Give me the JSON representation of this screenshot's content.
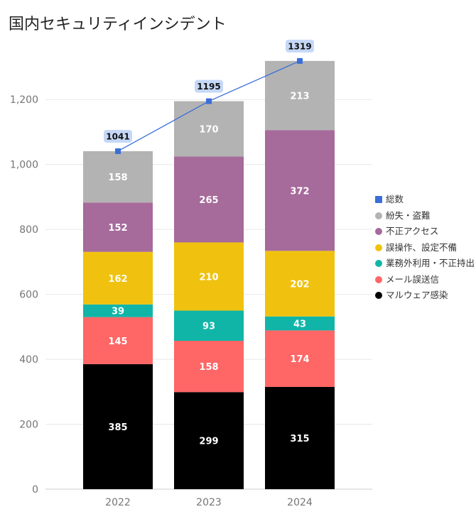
{
  "chart_data": {
    "type": "bar",
    "stacked": true,
    "title": "国内セキュリティインシデント",
    "categories": [
      "2022",
      "2023",
      "2024"
    ],
    "ylim": [
      0,
      1320
    ],
    "yticks": [
      0,
      200,
      400,
      600,
      800,
      1000,
      1200
    ],
    "ytick_labels": [
      "0",
      "200",
      "400",
      "600",
      "800",
      "1,000",
      "1,200"
    ],
    "grid": true,
    "legend_position": "right",
    "series": [
      {
        "name": "マルウェア感染",
        "color": "#000000",
        "values": [
          385,
          299,
          315
        ]
      },
      {
        "name": "メール誤送信",
        "color": "#FF6666",
        "values": [
          145,
          158,
          174
        ]
      },
      {
        "name": "業務外利用・不正持出",
        "color": "#10B5A8",
        "values": [
          39,
          93,
          43
        ]
      },
      {
        "name": "誤操作、設定不備",
        "color": "#F0C20F",
        "values": [
          162,
          210,
          202
        ]
      },
      {
        "name": "不正アクセス",
        "color": "#A66A9B",
        "values": [
          152,
          265,
          372
        ]
      },
      {
        "name": "紛失・盗難",
        "color": "#B3B3B3",
        "values": [
          158,
          170,
          213
        ]
      }
    ],
    "line": {
      "name": "総数",
      "type": "line",
      "color": "#3A6FD8",
      "values": [
        1041,
        1195,
        1319
      ]
    }
  },
  "legend": [
    {
      "label": "総数",
      "color": "#3A6FD8",
      "shape": "square"
    },
    {
      "label": "紛失・盗難",
      "color": "#B3B3B3",
      "shape": "circle"
    },
    {
      "label": "不正アクセス",
      "color": "#A66A9B",
      "shape": "circle"
    },
    {
      "label": "誤操作、設定不備",
      "color": "#F0C20F",
      "shape": "circle"
    },
    {
      "label": "業務外利用・不正持出",
      "color": "#10B5A8",
      "shape": "circle"
    },
    {
      "label": "メール誤送信",
      "color": "#FF6666",
      "shape": "circle"
    },
    {
      "label": "マルウェア感染",
      "color": "#000000",
      "shape": "circle"
    }
  ]
}
